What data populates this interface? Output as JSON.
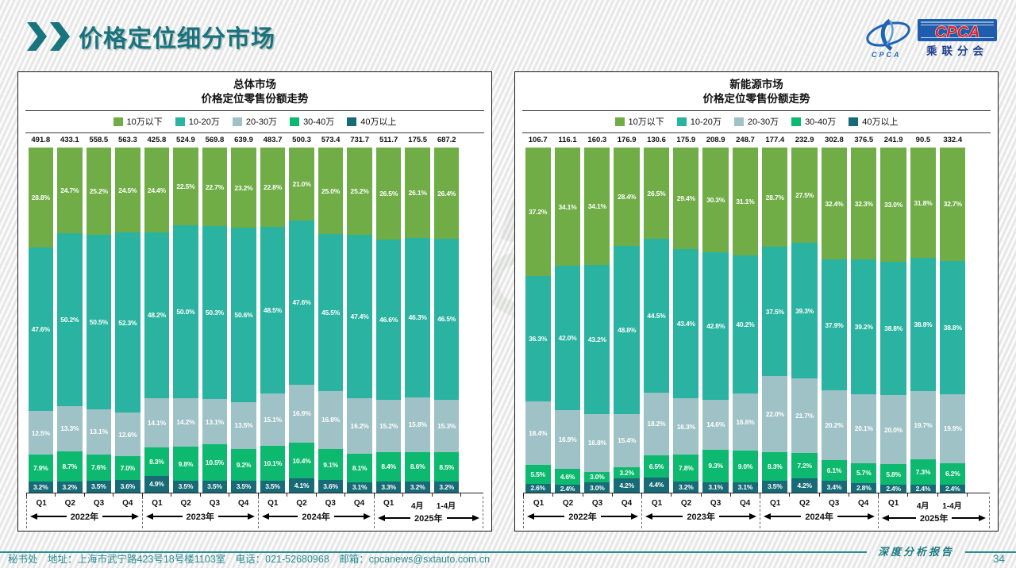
{
  "page": {
    "title": "价格定位细分市场",
    "watermark": "CPCA",
    "report_label": "深度分析报告",
    "page_number": "34",
    "footer_contact": "秘书处　地址：上海市武宁路423号18号楼1103室　电话：021-52680968　邮箱：cpcanews@sxtauto.com.cn"
  },
  "logo": {
    "acronym": "CPCA",
    "acronym_small": "CPCA",
    "name": "乘联分会"
  },
  "colors": {
    "accent_teal": "#17737d",
    "footer_teal": "#2d8c94",
    "band_under_100k": "#70ad47",
    "band_100_200k": "#2ab3a0",
    "band_200_300k": "#9fc2c6",
    "band_300_400k": "#0cb96e",
    "band_over_400k": "#176b77"
  },
  "chart_data": [
    {
      "type": "bar",
      "stacked": true,
      "unit": "%",
      "title": "总体市场",
      "subtitle": "价格定位零售份额走势",
      "legend_position": "top",
      "categories": [
        "Q1",
        "Q2",
        "Q3",
        "Q4",
        "Q1",
        "Q2",
        "Q3",
        "Q4",
        "Q1",
        "Q2",
        "Q3",
        "Q4",
        "Q1",
        "4月",
        "1-4月"
      ],
      "year_groups": [
        {
          "label": "2022年",
          "span": 4
        },
        {
          "label": "2023年",
          "span": 4
        },
        {
          "label": "2024年",
          "span": 4
        },
        {
          "label": "2025年",
          "span": 3
        }
      ],
      "totals": [
        491.8,
        433.1,
        558.5,
        563.3,
        425.8,
        524.9,
        569.8,
        639.9,
        483.7,
        500.3,
        573.4,
        731.7,
        511.7,
        175.5,
        687.2
      ],
      "series": [
        {
          "name": "10万以下",
          "color": "#70ad47",
          "values": [
            28.8,
            24.7,
            25.2,
            24.5,
            24.4,
            22.5,
            22.7,
            23.2,
            22.8,
            21.0,
            25.0,
            25.2,
            26.5,
            26.1,
            26.4
          ]
        },
        {
          "name": "10-20万",
          "color": "#2ab3a0",
          "values": [
            47.6,
            50.2,
            50.5,
            52.3,
            48.2,
            50.0,
            50.3,
            50.6,
            48.5,
            47.6,
            45.5,
            47.4,
            46.6,
            46.3,
            46.5
          ]
        },
        {
          "name": "20-30万",
          "color": "#9fc2c6",
          "values": [
            12.5,
            13.3,
            13.1,
            12.6,
            14.1,
            14.2,
            13.1,
            13.5,
            15.1,
            16.9,
            16.8,
            16.2,
            15.2,
            15.8,
            15.3
          ]
        },
        {
          "name": "30-40万",
          "color": "#0cb96e",
          "values": [
            7.9,
            8.7,
            7.6,
            7.0,
            8.3,
            9.8,
            10.5,
            9.2,
            10.1,
            10.4,
            9.1,
            8.1,
            8.4,
            8.6,
            8.5
          ]
        },
        {
          "name": "40万以上",
          "color": "#176b77",
          "values": [
            3.2,
            3.2,
            3.5,
            3.6,
            4.9,
            3.5,
            3.5,
            3.5,
            3.5,
            4.1,
            3.6,
            3.1,
            3.3,
            3.2,
            3.2
          ]
        }
      ]
    },
    {
      "type": "bar",
      "stacked": true,
      "unit": "%",
      "title": "新能源市场",
      "subtitle": "价格定位零售份额走势",
      "legend_position": "top",
      "categories": [
        "Q1",
        "Q2",
        "Q3",
        "Q4",
        "Q1",
        "Q2",
        "Q3",
        "Q4",
        "Q1",
        "Q2",
        "Q3",
        "Q4",
        "Q1",
        "4月",
        "1-4月"
      ],
      "year_groups": [
        {
          "label": "2022年",
          "span": 4
        },
        {
          "label": "2023年",
          "span": 4
        },
        {
          "label": "2024年",
          "span": 4
        },
        {
          "label": "2025年",
          "span": 3
        }
      ],
      "totals": [
        106.7,
        116.1,
        160.3,
        176.9,
        130.6,
        175.9,
        208.9,
        248.7,
        177.4,
        232.9,
        302.8,
        376.5,
        241.9,
        90.5,
        332.4
      ],
      "series": [
        {
          "name": "10万以下",
          "color": "#70ad47",
          "values": [
            37.2,
            34.1,
            34.1,
            28.4,
            26.5,
            29.4,
            30.3,
            31.1,
            28.7,
            27.5,
            32.4,
            32.3,
            33.0,
            31.8,
            32.7
          ]
        },
        {
          "name": "10-20万",
          "color": "#2ab3a0",
          "values": [
            36.3,
            42.0,
            43.2,
            48.8,
            44.5,
            43.4,
            42.8,
            40.2,
            37.5,
            39.3,
            37.9,
            39.2,
            38.8,
            38.8,
            38.8
          ]
        },
        {
          "name": "20-30万",
          "color": "#9fc2c6",
          "values": [
            18.4,
            16.9,
            16.8,
            15.4,
            18.2,
            16.3,
            14.6,
            16.6,
            22.0,
            21.7,
            20.2,
            20.1,
            20.0,
            19.7,
            19.9
          ]
        },
        {
          "name": "30-40万",
          "color": "#0cb96e",
          "values": [
            5.5,
            4.6,
            3.0,
            3.2,
            6.5,
            7.8,
            9.3,
            9.0,
            8.3,
            7.2,
            6.1,
            5.7,
            5.8,
            7.3,
            6.2
          ]
        },
        {
          "name": "40万以上",
          "color": "#176b77",
          "values": [
            2.6,
            2.4,
            3.0,
            4.2,
            4.4,
            3.2,
            3.1,
            3.1,
            3.5,
            4.2,
            3.4,
            2.8,
            2.4,
            2.4,
            2.4
          ]
        }
      ]
    }
  ]
}
